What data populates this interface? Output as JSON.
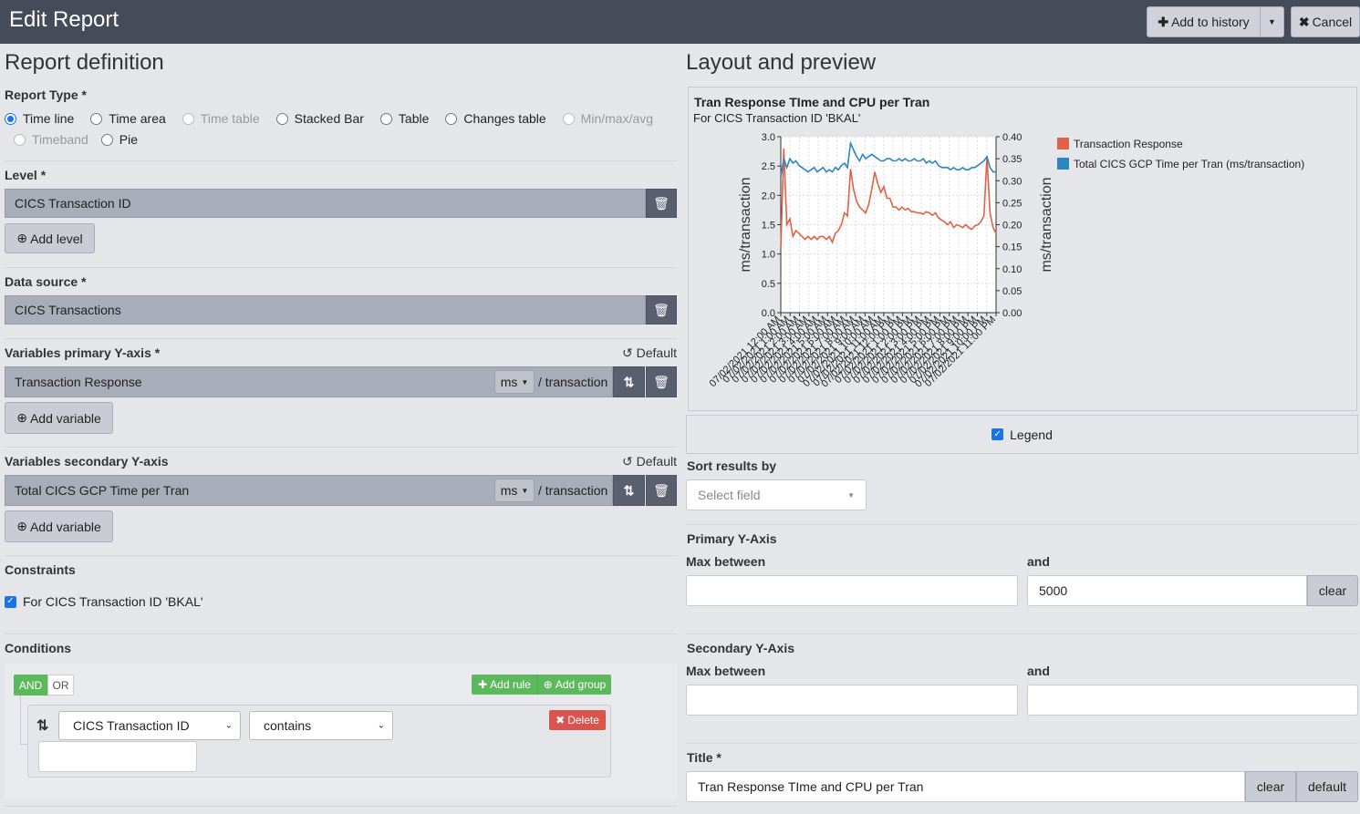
{
  "header": {
    "title": "Edit Report",
    "add_to_history": "Add to history",
    "cancel": "Cancel"
  },
  "left": {
    "title": "Report definition",
    "report_type": {
      "label": "Report Type",
      "options": [
        "Time line",
        "Time area",
        "Time table",
        "Stacked Bar",
        "Table",
        "Changes table",
        "Min/max/avg",
        "Timeband",
        "Pie"
      ],
      "selected": "Time line",
      "disabled": [
        "Time table",
        "Min/max/avg",
        "Timeband"
      ]
    },
    "level": {
      "label": "Level",
      "value": "CICS Transaction ID",
      "add": "Add level"
    },
    "data_source": {
      "label": "Data source",
      "value": "CICS Transactions"
    },
    "primary_vars": {
      "label": "Variables primary Y-axis",
      "default": "Default",
      "value": "Transaction Response",
      "unit": "ms",
      "per": "/ transaction",
      "add": "Add variable"
    },
    "secondary_vars": {
      "label": "Variables secondary Y-axis",
      "default": "Default",
      "value": "Total CICS GCP Time per Tran",
      "unit": "ms",
      "per": "/ transaction",
      "add": "Add variable"
    },
    "constraints": {
      "label": "Constraints",
      "item": "For CICS Transaction ID 'BKAL'",
      "checked": true
    },
    "conditions": {
      "label": "Conditions",
      "and": "AND",
      "or": "OR",
      "add_rule": "Add rule",
      "add_group": "Add group",
      "field": "CICS Transaction ID",
      "operator": "contains",
      "delete": "Delete",
      "value": ""
    }
  },
  "right": {
    "title": "Layout and preview",
    "legend_label": "Legend",
    "legend_checked": true,
    "sort": {
      "label": "Sort results by",
      "placeholder": "Select field"
    },
    "primary_axis": {
      "label": "Primary Y-Axis",
      "max_between": "Max between",
      "and": "and",
      "min_value": "",
      "max_value": "5000",
      "clear": "clear"
    },
    "secondary_axis": {
      "label": "Secondary Y-Axis",
      "max_between": "Max between",
      "and": "and",
      "min_value": "",
      "max_value": ""
    },
    "title_field": {
      "label": "Title",
      "value": "Tran Response TIme and CPU per Tran",
      "clear": "clear",
      "default": "default"
    }
  },
  "chart_data": {
    "type": "line",
    "title": "Tran Response TIme and CPU per Tran",
    "subtitle": "For CICS Transaction ID 'BKAL'",
    "ylabel": "ms/transaction",
    "y2label": "ms/transaction",
    "ylim": [
      0,
      3.0
    ],
    "y2lim": [
      0,
      0.4
    ],
    "yticks": [
      "0.0",
      "0.5",
      "1.0",
      "1.5",
      "2.0",
      "2.5",
      "3.0"
    ],
    "y2ticks": [
      "0.00",
      "0.05",
      "0.10",
      "0.15",
      "0.20",
      "0.25",
      "0.30",
      "0.35",
      "0.40"
    ],
    "xticks": [
      "07/02/2021 12:00 AM",
      "07/02/2021 1:00 AM",
      "07/02/2021 2:00 AM",
      "07/02/2021 3:00 AM",
      "07/02/2021 4:00 AM",
      "07/02/2021 5:00 AM",
      "07/02/2021 6:00 AM",
      "07/02/2021 7:00 AM",
      "07/02/2021 8:00 AM",
      "07/02/2021 9:00 AM",
      "07/02/2021 10:00 AM",
      "07/02/2021 11:00 AM",
      "07/02/2021 12:00 PM",
      "07/02/2021 1:00 PM",
      "07/02/2021 2:00 PM",
      "07/02/2021 3:00 PM",
      "07/02/2021 4:00 PM",
      "07/02/2021 5:00 PM",
      "07/02/2021 6:00 PM",
      "07/02/2021 7:00 PM",
      "07/02/2021 8:00 PM",
      "07/02/2021 9:00 PM",
      "07/02/2021 10:00 PM",
      "07/02/2021 11:00 PM"
    ],
    "grid": true,
    "legend_position": "right",
    "series": [
      {
        "name": "Transaction Response",
        "axis": "primary",
        "color": "#e06245",
        "values": [
          1.1,
          2.8,
          1.5,
          1.6,
          1.3,
          1.4,
          1.35,
          1.3,
          1.25,
          1.3,
          1.25,
          1.3,
          1.25,
          1.3,
          1.3,
          1.25,
          1.3,
          1.2,
          1.35,
          1.4,
          1.5,
          1.7,
          1.65,
          2.45,
          2.1,
          1.9,
          1.8,
          1.75,
          1.7,
          1.85,
          2.1,
          2.4,
          2.2,
          2.05,
          2.15,
          1.95,
          1.95,
          1.8,
          1.8,
          1.75,
          1.8,
          1.75,
          1.78,
          1.72,
          1.72,
          1.7,
          1.7,
          1.68,
          1.72,
          1.7,
          1.66,
          1.7,
          1.62,
          1.58,
          1.55,
          1.5,
          1.55,
          1.45,
          1.5,
          1.48,
          1.45,
          1.5,
          1.45,
          1.42,
          1.48,
          1.5,
          1.55,
          1.65,
          2.65,
          1.7,
          1.45,
          1.35
        ]
      },
      {
        "name": "Total CICS GCP Time per Tran (ms/transaction)",
        "axis": "secondary",
        "color": "#2e86c1",
        "values": [
          0.31,
          0.35,
          0.33,
          0.35,
          0.34,
          0.345,
          0.335,
          0.33,
          0.325,
          0.32,
          0.325,
          0.33,
          0.32,
          0.325,
          0.33,
          0.32,
          0.325,
          0.32,
          0.33,
          0.325,
          0.335,
          0.34,
          0.33,
          0.385,
          0.37,
          0.355,
          0.345,
          0.36,
          0.35,
          0.355,
          0.36,
          0.355,
          0.35,
          0.345,
          0.345,
          0.35,
          0.35,
          0.345,
          0.345,
          0.35,
          0.345,
          0.35,
          0.345,
          0.345,
          0.35,
          0.345,
          0.345,
          0.35,
          0.34,
          0.345,
          0.34,
          0.345,
          0.335,
          0.33,
          0.33,
          0.33,
          0.325,
          0.33,
          0.325,
          0.325,
          0.33,
          0.325,
          0.325,
          0.33,
          0.33,
          0.335,
          0.34,
          0.345,
          0.355,
          0.33,
          0.32,
          0.32
        ]
      }
    ]
  }
}
